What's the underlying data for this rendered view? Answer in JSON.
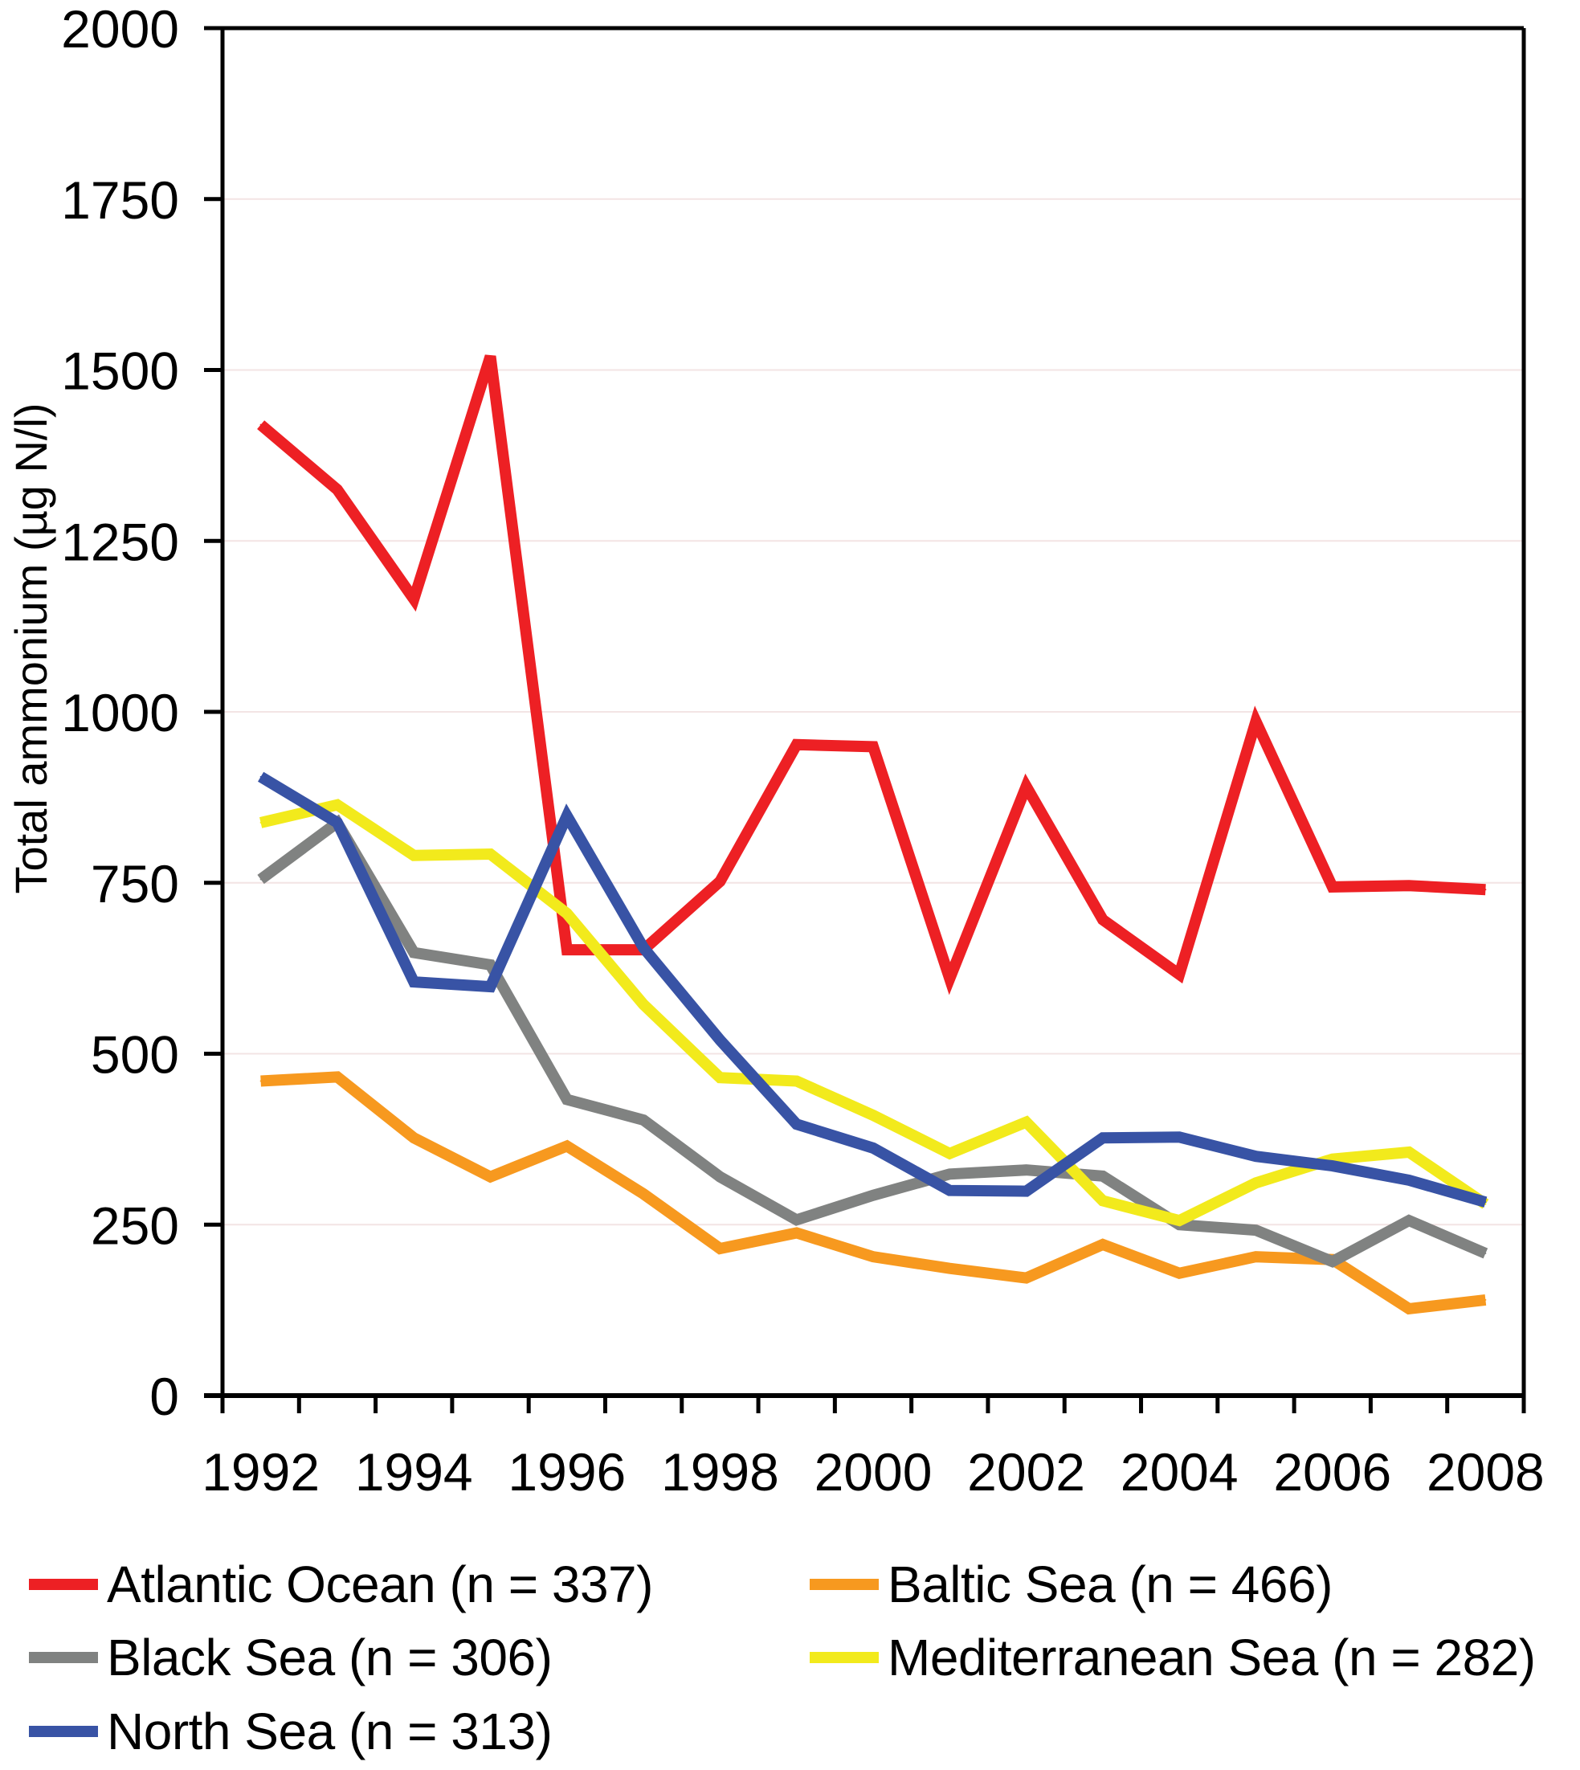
{
  "chart_data": {
    "type": "line",
    "title": "",
    "xlabel": "",
    "ylabel": "Total ammonium (µg N/l)",
    "ylim": [
      0,
      2000
    ],
    "yticks": [
      0,
      250,
      500,
      750,
      1000,
      1250,
      1500,
      1750,
      2000
    ],
    "ytick_labels": [
      "0",
      "250",
      "500",
      "750",
      "1000",
      "1250",
      "1500",
      "1750",
      "2000"
    ],
    "x": [
      1992,
      1993,
      1994,
      1995,
      1996,
      1997,
      1998,
      1999,
      2000,
      2001,
      2002,
      2003,
      2004,
      2005,
      2006,
      2007,
      2008
    ],
    "xtick_labels": [
      "1992",
      "1994",
      "1996",
      "1998",
      "2000",
      "2002",
      "2004",
      "2006",
      "2008"
    ],
    "grid": true,
    "legend_position": "bottom",
    "series": [
      {
        "name": "Atlantic Ocean (n = 337)",
        "color": "#ED2024",
        "values": [
          1420,
          1325,
          1165,
          1520,
          652,
          652,
          752,
          952,
          949,
          610,
          891,
          696,
          616,
          986,
          744,
          746,
          740
        ]
      },
      {
        "name": "Baltic Sea (n = 466)",
        "color": "#F7991F",
        "values": [
          460,
          466,
          377,
          320,
          365,
          295,
          215,
          238,
          203,
          186,
          172,
          221,
          179,
          203,
          199,
          127,
          140
        ]
      },
      {
        "name": "Black Sea (n = 306)",
        "color": "#808281",
        "values": [
          755,
          838,
          648,
          630,
          433,
          403,
          320,
          257,
          293,
          324,
          330,
          321,
          250,
          242,
          196,
          256,
          208
        ]
      },
      {
        "name": "Mediterranean Sea (n = 282)",
        "color": "#F2EA1C",
        "values": [
          838,
          864,
          790,
          792,
          705,
          572,
          465,
          460,
          410,
          354,
          400,
          285,
          256,
          311,
          346,
          356,
          280
        ]
      },
      {
        "name": "North Sea (n = 313)",
        "color": "#3853A5",
        "values": [
          905,
          838,
          605,
          598,
          848,
          655,
          520,
          397,
          362,
          300,
          299,
          377,
          378,
          350,
          336,
          315,
          283
        ]
      }
    ]
  },
  "legend": {
    "items": [
      {
        "label": "Atlantic Ocean (n = 337)",
        "color": "#ED2024"
      },
      {
        "label": "Baltic Sea (n = 466)",
        "color": "#F7991F"
      },
      {
        "label": "Black Sea (n = 306)",
        "color": "#808281"
      },
      {
        "label": "Mediterranean Sea (n = 282)",
        "color": "#F2EA1C"
      },
      {
        "label": "North Sea (n = 313)",
        "color": "#3853A5"
      }
    ]
  },
  "colors": {
    "axis": "#000000",
    "grid": "#F3E4E4",
    "background": "#FFFFFF"
  }
}
